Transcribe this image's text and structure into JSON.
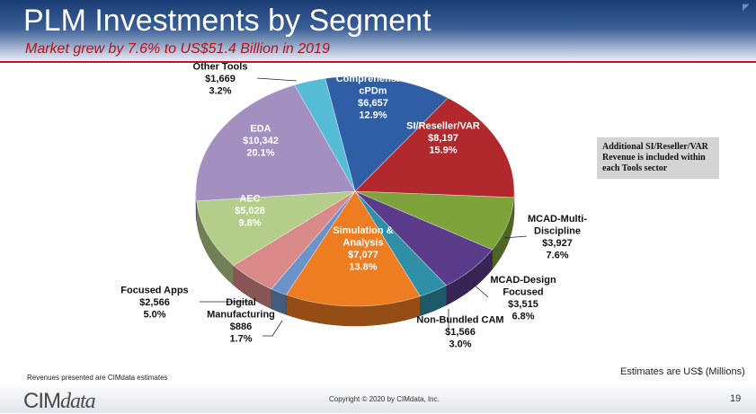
{
  "header": {
    "title": "PLM Investments by Segment",
    "subtitle": "Market grew by 7.6% to US$51.4 Billion in 2019"
  },
  "note": {
    "lines": [
      "Additional SI/Reseller/VAR",
      "Revenue is included within",
      "each Tools sector"
    ]
  },
  "footer": {
    "revenue_note": "Revenues presented are CIMdata estimates",
    "units_note": "Estimates are US$ (Millions)",
    "logo_part1": "CIM",
    "logo_part2": "data",
    "copyright": "Copyright © 2020 by CIMdata, Inc.",
    "page_number": "19"
  },
  "chart_data": {
    "type": "pie",
    "title": "PLM Investments by Segment",
    "slices": [
      {
        "label": [
          "Comprehensive",
          "cPDm"
        ],
        "value": "$6,657",
        "percent": "12.9%",
        "pct": 12.9,
        "color": "#2f5ea6",
        "label_inside": true
      },
      {
        "label": [
          "SI/Reseller/VAR"
        ],
        "value": "$8,197",
        "percent": "15.9%",
        "pct": 15.9,
        "color": "#b1292c",
        "label_inside": true
      },
      {
        "label": [
          "MCAD-Multi-",
          "Discipline"
        ],
        "value": "$3,927",
        "percent": "7.6%",
        "pct": 7.6,
        "color": "#7ea33a",
        "label_inside": false
      },
      {
        "label": [
          "MCAD-Design",
          "Focused"
        ],
        "value": "$3,515",
        "percent": "6.8%",
        "pct": 6.8,
        "color": "#5b3c8a",
        "label_inside": false
      },
      {
        "label": [
          "Non-Bundled CAM"
        ],
        "value": "$1,566",
        "percent": "3.0%",
        "pct": 3.0,
        "color": "#2f8fa6",
        "label_inside": false
      },
      {
        "label": [
          "Simulation &",
          "Analysis"
        ],
        "value": "$7,077",
        "percent": "13.8%",
        "pct": 13.8,
        "color": "#ee7d22",
        "label_inside": true
      },
      {
        "label": [
          "Digital",
          "Manufacturing"
        ],
        "value": "$886",
        "percent": "1.7%",
        "pct": 1.7,
        "color": "#6c93c9",
        "label_inside": false
      },
      {
        "label": [
          "Focused Apps"
        ],
        "value": "$2,566",
        "percent": "5.0%",
        "pct": 5.0,
        "color": "#d98a88",
        "label_inside": false
      },
      {
        "label": [
          "AEC"
        ],
        "value": "$5,028",
        "percent": "9.8%",
        "pct": 9.8,
        "color": "#b5cd8a",
        "label_inside": true
      },
      {
        "label": [
          "EDA"
        ],
        "value": "$10,342",
        "percent": "20.1%",
        "pct": 20.1,
        "color": "#a390c0",
        "label_inside": true
      },
      {
        "label": [
          "Other Tools"
        ],
        "value": "$1,669",
        "percent": "3.2%",
        "pct": 3.2,
        "color": "#56bcd6",
        "label_inside": false
      }
    ]
  }
}
